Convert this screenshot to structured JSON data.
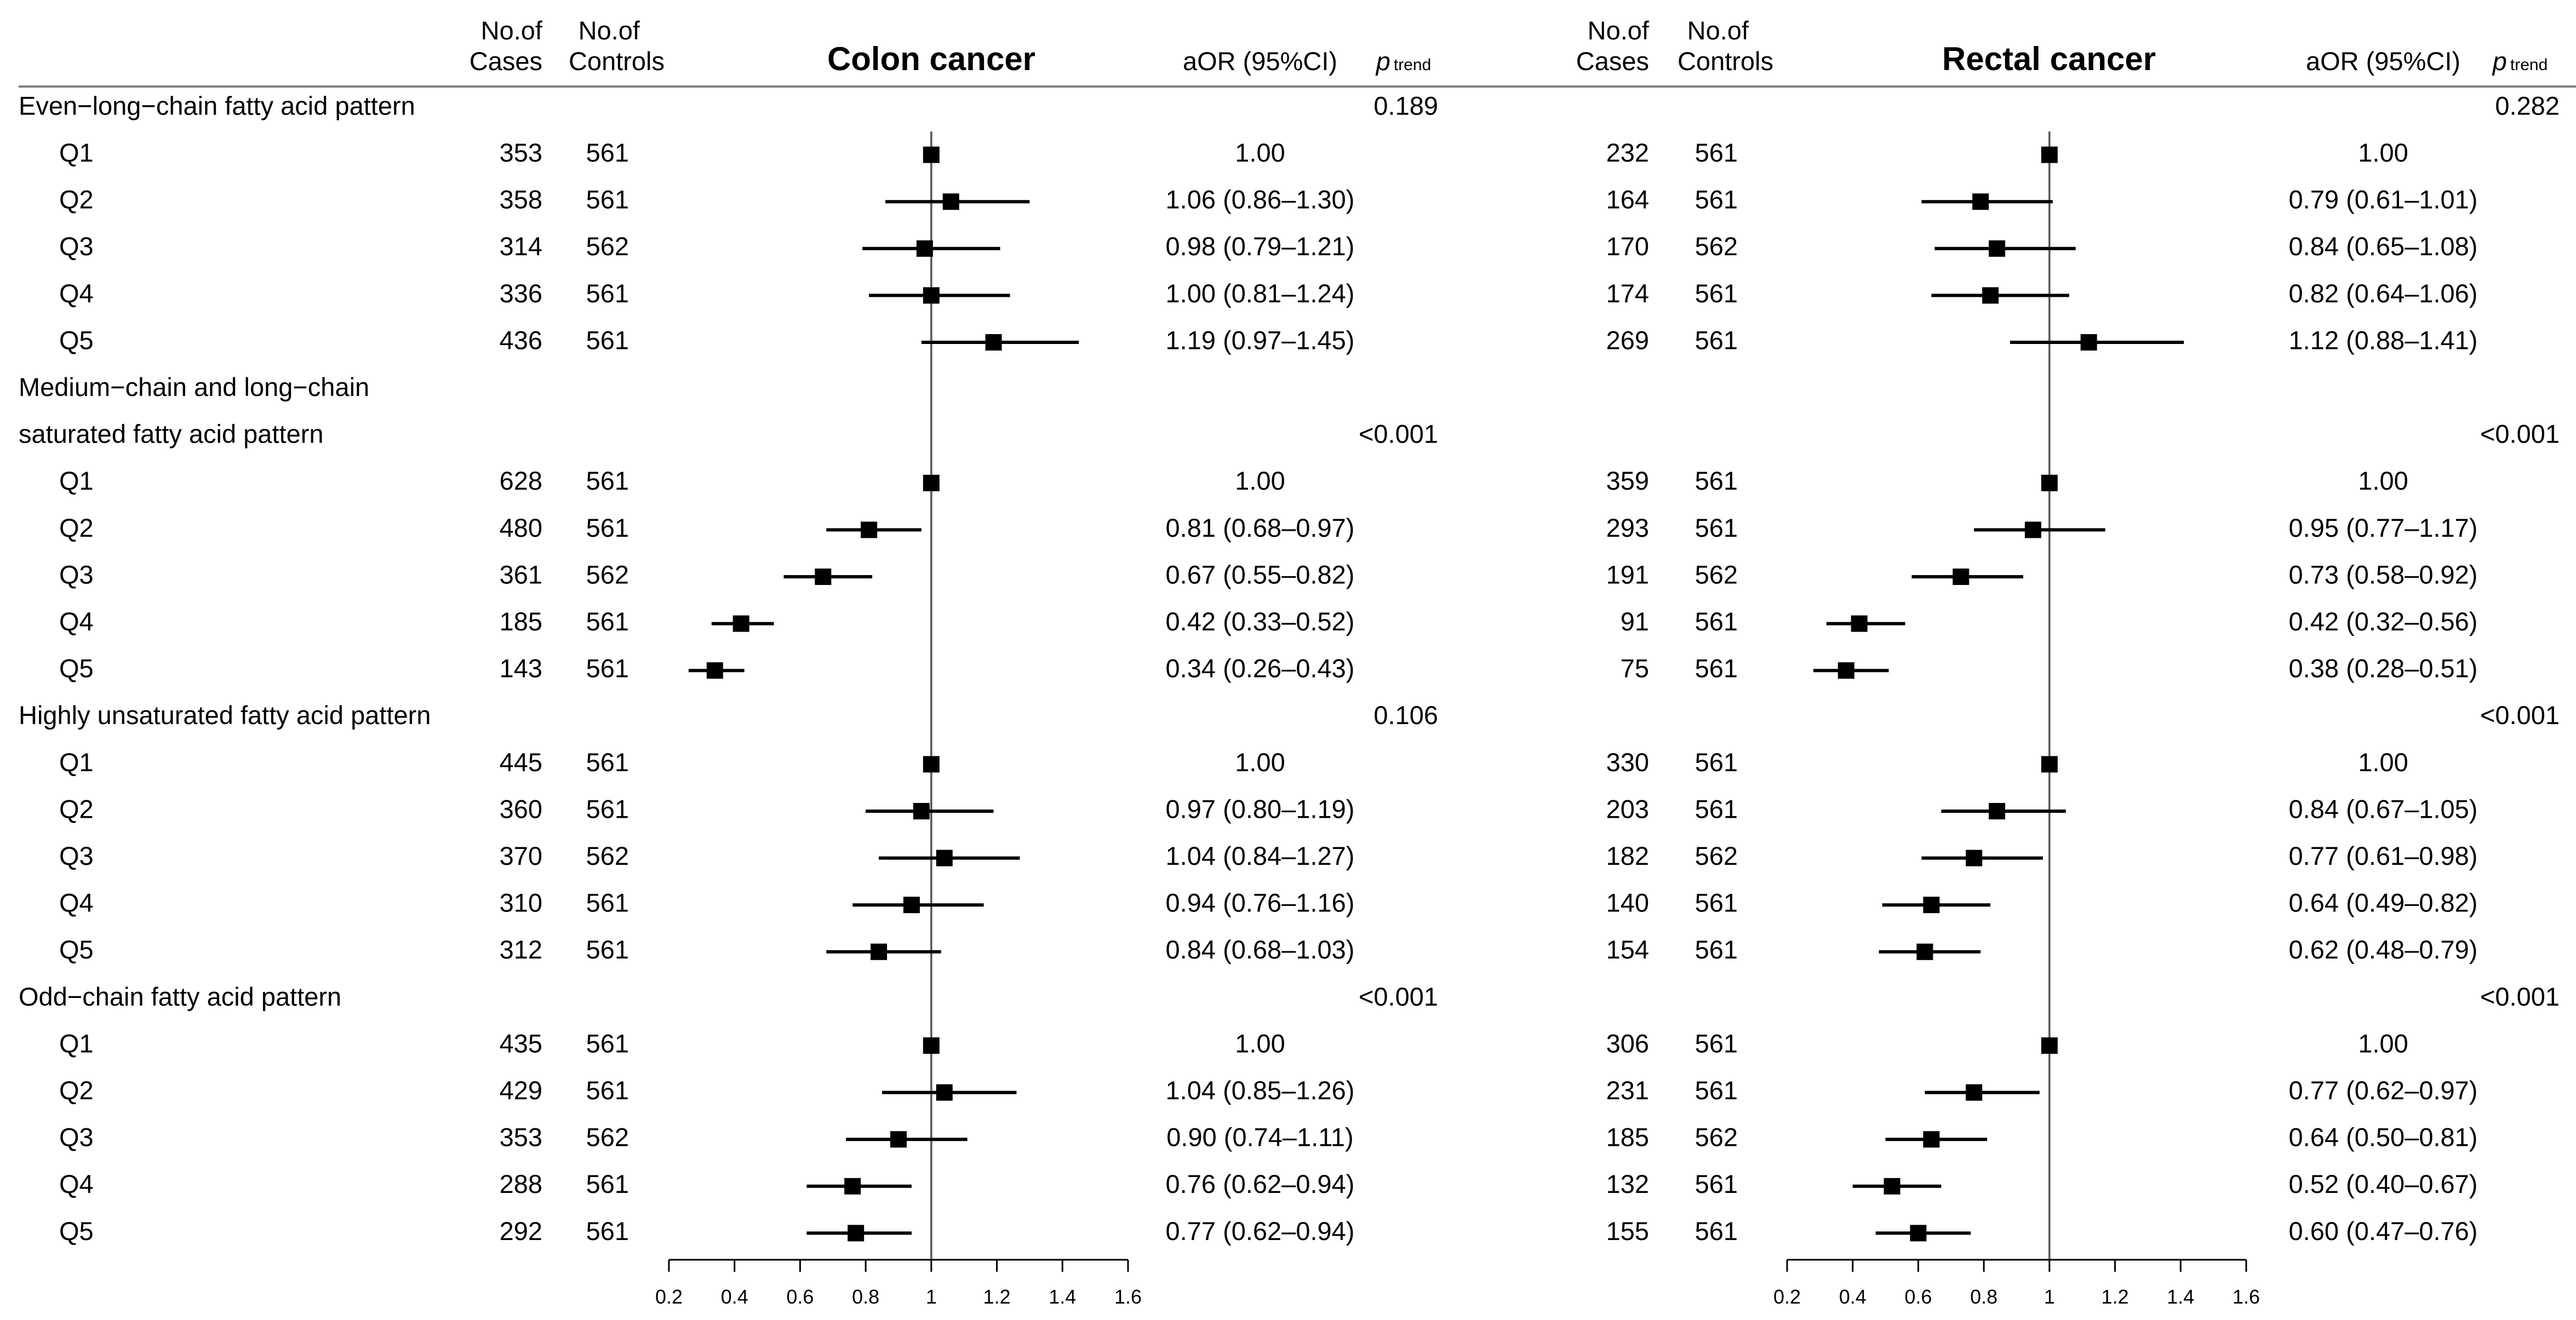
{
  "chart_data": {
    "type": "forest",
    "header_row": {
      "cases_label_line1": "No.of",
      "cases_label_line2": "Cases",
      "controls_label_line1": "No.of",
      "controls_label_line2": "Controls",
      "or_label": "aOR (95%CI)",
      "ptrend_p": "p",
      "ptrend_sub": "trend"
    },
    "x_axis": {
      "range": [
        0.2,
        1.6
      ],
      "ticks": [
        0.2,
        0.4,
        0.6,
        0.8,
        1.0,
        1.2,
        1.4,
        1.6
      ],
      "tick_labels": [
        "0.2",
        "0.4",
        "0.6",
        "0.8",
        "1",
        "1.2",
        "1.4",
        "1.6"
      ],
      "reference_line": 1.0
    },
    "patterns": [
      {
        "name_lines": [
          "Even−long−chain fatty acid pattern"
        ]
      },
      {
        "name_lines": [
          "Medium−chain and long−chain",
          "saturated fatty acid pattern"
        ]
      },
      {
        "name_lines": [
          "Highly unsaturated fatty acid pattern"
        ]
      },
      {
        "name_lines": [
          "Odd−chain fatty acid pattern"
        ]
      }
    ],
    "panels": [
      {
        "title": "Colon cancer",
        "groups": [
          {
            "p_trend": "0.189",
            "rows": [
              {
                "label": "Q1",
                "cases": "353",
                "controls": "561",
                "or": 1.0,
                "lo": 1.0,
                "hi": 1.0,
                "text": "1.00"
              },
              {
                "label": "Q2",
                "cases": "358",
                "controls": "561",
                "or": 1.06,
                "lo": 0.86,
                "hi": 1.3,
                "text": "1.06 (0.86–1.30)"
              },
              {
                "label": "Q3",
                "cases": "314",
                "controls": "562",
                "or": 0.98,
                "lo": 0.79,
                "hi": 1.21,
                "text": "0.98 (0.79–1.21)"
              },
              {
                "label": "Q4",
                "cases": "336",
                "controls": "561",
                "or": 1.0,
                "lo": 0.81,
                "hi": 1.24,
                "text": "1.00 (0.81–1.24)"
              },
              {
                "label": "Q5",
                "cases": "436",
                "controls": "561",
                "or": 1.19,
                "lo": 0.97,
                "hi": 1.45,
                "text": "1.19 (0.97–1.45)"
              }
            ]
          },
          {
            "p_trend": "<0.001",
            "rows": [
              {
                "label": "Q1",
                "cases": "628",
                "controls": "561",
                "or": 1.0,
                "lo": 1.0,
                "hi": 1.0,
                "text": "1.00"
              },
              {
                "label": "Q2",
                "cases": "480",
                "controls": "561",
                "or": 0.81,
                "lo": 0.68,
                "hi": 0.97,
                "text": "0.81 (0.68–0.97)"
              },
              {
                "label": "Q3",
                "cases": "361",
                "controls": "562",
                "or": 0.67,
                "lo": 0.55,
                "hi": 0.82,
                "text": "0.67 (0.55–0.82)"
              },
              {
                "label": "Q4",
                "cases": "185",
                "controls": "561",
                "or": 0.42,
                "lo": 0.33,
                "hi": 0.52,
                "text": "0.42 (0.33–0.52)"
              },
              {
                "label": "Q5",
                "cases": "143",
                "controls": "561",
                "or": 0.34,
                "lo": 0.26,
                "hi": 0.43,
                "text": "0.34 (0.26–0.43)"
              }
            ]
          },
          {
            "p_trend": "0.106",
            "rows": [
              {
                "label": "Q1",
                "cases": "445",
                "controls": "561",
                "or": 1.0,
                "lo": 1.0,
                "hi": 1.0,
                "text": "1.00"
              },
              {
                "label": "Q2",
                "cases": "360",
                "controls": "561",
                "or": 0.97,
                "lo": 0.8,
                "hi": 1.19,
                "text": "0.97 (0.80–1.19)"
              },
              {
                "label": "Q3",
                "cases": "370",
                "controls": "562",
                "or": 1.04,
                "lo": 0.84,
                "hi": 1.27,
                "text": "1.04 (0.84–1.27)"
              },
              {
                "label": "Q4",
                "cases": "310",
                "controls": "561",
                "or": 0.94,
                "lo": 0.76,
                "hi": 1.16,
                "text": "0.94 (0.76–1.16)"
              },
              {
                "label": "Q5",
                "cases": "312",
                "controls": "561",
                "or": 0.84,
                "lo": 0.68,
                "hi": 1.03,
                "text": "0.84 (0.68–1.03)"
              }
            ]
          },
          {
            "p_trend": "<0.001",
            "rows": [
              {
                "label": "Q1",
                "cases": "435",
                "controls": "561",
                "or": 1.0,
                "lo": 1.0,
                "hi": 1.0,
                "text": "1.00"
              },
              {
                "label": "Q2",
                "cases": "429",
                "controls": "561",
                "or": 1.04,
                "lo": 0.85,
                "hi": 1.26,
                "text": "1.04 (0.85–1.26)"
              },
              {
                "label": "Q3",
                "cases": "353",
                "controls": "562",
                "or": 0.9,
                "lo": 0.74,
                "hi": 1.11,
                "text": "0.90 (0.74–1.11)"
              },
              {
                "label": "Q4",
                "cases": "288",
                "controls": "561",
                "or": 0.76,
                "lo": 0.62,
                "hi": 0.94,
                "text": "0.76 (0.62–0.94)"
              },
              {
                "label": "Q5",
                "cases": "292",
                "controls": "561",
                "or": 0.77,
                "lo": 0.62,
                "hi": 0.94,
                "text": "0.77 (0.62–0.94)"
              }
            ]
          }
        ]
      },
      {
        "title": "Rectal cancer",
        "groups": [
          {
            "p_trend": "0.282",
            "rows": [
              {
                "label": "Q1",
                "cases": "232",
                "controls": "561",
                "or": 1.0,
                "lo": 1.0,
                "hi": 1.0,
                "text": "1.00"
              },
              {
                "label": "Q2",
                "cases": "164",
                "controls": "561",
                "or": 0.79,
                "lo": 0.61,
                "hi": 1.01,
                "text": "0.79 (0.61–1.01)"
              },
              {
                "label": "Q3",
                "cases": "170",
                "controls": "562",
                "or": 0.84,
                "lo": 0.65,
                "hi": 1.08,
                "text": "0.84 (0.65–1.08)"
              },
              {
                "label": "Q4",
                "cases": "174",
                "controls": "561",
                "or": 0.82,
                "lo": 0.64,
                "hi": 1.06,
                "text": "0.82 (0.64–1.06)"
              },
              {
                "label": "Q5",
                "cases": "269",
                "controls": "561",
                "or": 1.12,
                "lo": 0.88,
                "hi": 1.41,
                "text": "1.12 (0.88–1.41)"
              }
            ]
          },
          {
            "p_trend": "<0.001",
            "rows": [
              {
                "label": "Q1",
                "cases": "359",
                "controls": "561",
                "or": 1.0,
                "lo": 1.0,
                "hi": 1.0,
                "text": "1.00"
              },
              {
                "label": "Q2",
                "cases": "293",
                "controls": "561",
                "or": 0.95,
                "lo": 0.77,
                "hi": 1.17,
                "text": "0.95 (0.77–1.17)"
              },
              {
                "label": "Q3",
                "cases": "191",
                "controls": "562",
                "or": 0.73,
                "lo": 0.58,
                "hi": 0.92,
                "text": "0.73 (0.58–0.92)"
              },
              {
                "label": "Q4",
                "cases": "91",
                "controls": "561",
                "or": 0.42,
                "lo": 0.32,
                "hi": 0.56,
                "text": "0.42 (0.32–0.56)"
              },
              {
                "label": "Q5",
                "cases": "75",
                "controls": "561",
                "or": 0.38,
                "lo": 0.28,
                "hi": 0.51,
                "text": "0.38 (0.28–0.51)"
              }
            ]
          },
          {
            "p_trend": "<0.001",
            "rows": [
              {
                "label": "Q1",
                "cases": "330",
                "controls": "561",
                "or": 1.0,
                "lo": 1.0,
                "hi": 1.0,
                "text": "1.00"
              },
              {
                "label": "Q2",
                "cases": "203",
                "controls": "561",
                "or": 0.84,
                "lo": 0.67,
                "hi": 1.05,
                "text": "0.84 (0.67–1.05)"
              },
              {
                "label": "Q3",
                "cases": "182",
                "controls": "562",
                "or": 0.77,
                "lo": 0.61,
                "hi": 0.98,
                "text": "0.77 (0.61–0.98)"
              },
              {
                "label": "Q4",
                "cases": "140",
                "controls": "561",
                "or": 0.64,
                "lo": 0.49,
                "hi": 0.82,
                "text": "0.64 (0.49–0.82)"
              },
              {
                "label": "Q5",
                "cases": "154",
                "controls": "561",
                "or": 0.62,
                "lo": 0.48,
                "hi": 0.79,
                "text": "0.62 (0.48–0.79)"
              }
            ]
          },
          {
            "p_trend": "<0.001",
            "rows": [
              {
                "label": "Q1",
                "cases": "306",
                "controls": "561",
                "or": 1.0,
                "lo": 1.0,
                "hi": 1.0,
                "text": "1.00"
              },
              {
                "label": "Q2",
                "cases": "231",
                "controls": "561",
                "or": 0.77,
                "lo": 0.62,
                "hi": 0.97,
                "text": "0.77 (0.62–0.97)"
              },
              {
                "label": "Q3",
                "cases": "185",
                "controls": "562",
                "or": 0.64,
                "lo": 0.5,
                "hi": 0.81,
                "text": "0.64 (0.50–0.81)"
              },
              {
                "label": "Q4",
                "cases": "132",
                "controls": "561",
                "or": 0.52,
                "lo": 0.4,
                "hi": 0.67,
                "text": "0.52 (0.40–0.67)"
              },
              {
                "label": "Q5",
                "cases": "155",
                "controls": "561",
                "or": 0.6,
                "lo": 0.47,
                "hi": 0.76,
                "text": "0.60 (0.47–0.76)"
              }
            ]
          }
        ]
      }
    ]
  }
}
